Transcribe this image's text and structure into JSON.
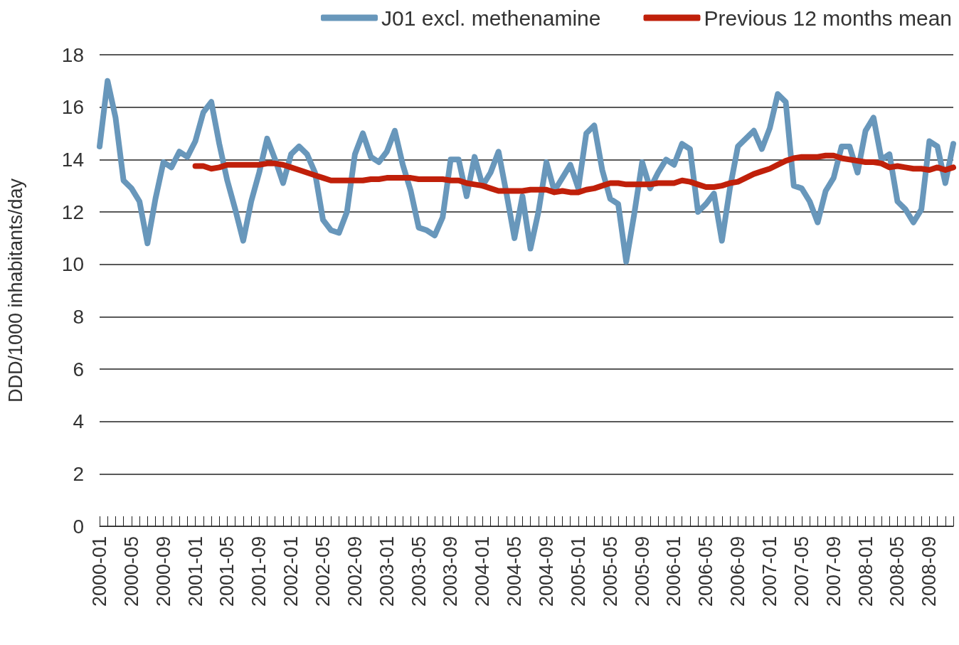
{
  "chart_data": {
    "type": "line",
    "ylabel": "DDD/1000 inhabitants/day",
    "categories": [
      "2000-01",
      null,
      null,
      null,
      "2000-05",
      null,
      null,
      null,
      "2000-09",
      null,
      null,
      null,
      "2001-01",
      null,
      null,
      null,
      "2001-05",
      null,
      null,
      null,
      "2001-09",
      null,
      null,
      null,
      "2002-01",
      null,
      null,
      null,
      "2002-05",
      null,
      null,
      null,
      "2002-09",
      null,
      null,
      null,
      "2003-01",
      null,
      null,
      null,
      "2003-05",
      null,
      null,
      null,
      "2003-09",
      null,
      null,
      null,
      "2004-01",
      null,
      null,
      null,
      "2004-05",
      null,
      null,
      null,
      "2004-09",
      null,
      null,
      null,
      "2005-01",
      null,
      null,
      null,
      "2005-05",
      null,
      null,
      null,
      "2005-09",
      null,
      null,
      null,
      "2006-01",
      null,
      null,
      null,
      "2006-05",
      null,
      null,
      null,
      "2006-09",
      null,
      null,
      null,
      "2007-01",
      null,
      null,
      null,
      "2007-05",
      null,
      null,
      null,
      "2007-09",
      null,
      null,
      null,
      "2008-01",
      null,
      null,
      null,
      "2008-05",
      null,
      null,
      null,
      "2008-09",
      null,
      null,
      null
    ],
    "series": [
      {
        "name": "J01 excl. methenamine",
        "color": "#6897bb",
        "values": [
          14.5,
          17.0,
          15.6,
          13.2,
          12.9,
          12.4,
          10.8,
          12.5,
          13.9,
          13.7,
          14.3,
          14.1,
          14.7,
          15.8,
          16.2,
          14.6,
          13.2,
          12.1,
          10.9,
          12.4,
          13.5,
          14.8,
          14.0,
          13.1,
          14.2,
          14.5,
          14.2,
          13.5,
          11.7,
          11.3,
          11.2,
          12.0,
          14.2,
          15.0,
          14.1,
          13.9,
          14.3,
          15.1,
          13.8,
          12.8,
          11.4,
          11.3,
          11.1,
          11.8,
          14.0,
          14.0,
          12.6,
          14.1,
          13.0,
          13.5,
          14.3,
          12.7,
          11.0,
          12.6,
          10.6,
          12.0,
          13.9,
          12.8,
          13.3,
          13.8,
          12.9,
          15.0,
          15.3,
          13.6,
          12.5,
          12.3,
          10.1,
          11.9,
          13.9,
          12.9,
          13.5,
          14.0,
          13.8,
          14.6,
          14.4,
          12.0,
          12.3,
          12.7,
          10.9,
          12.9,
          14.5,
          14.8,
          15.1,
          14.4,
          15.2,
          16.5,
          16.2,
          13.0,
          12.9,
          12.4,
          11.6,
          12.8,
          13.3,
          14.5,
          14.5,
          13.5,
          15.1,
          15.6,
          14.0,
          14.2,
          12.4,
          12.1,
          11.6,
          12.1,
          14.7,
          14.5,
          13.1,
          14.6
        ]
      },
      {
        "name": "Previous 12 months mean",
        "color": "#c0200a",
        "values": [
          null,
          null,
          null,
          null,
          null,
          null,
          null,
          null,
          null,
          null,
          null,
          null,
          13.75,
          13.75,
          13.65,
          13.7,
          13.8,
          13.8,
          13.8,
          13.8,
          13.8,
          13.85,
          13.85,
          13.8,
          13.7,
          13.6,
          13.5,
          13.4,
          13.3,
          13.2,
          13.2,
          13.2,
          13.2,
          13.2,
          13.25,
          13.25,
          13.3,
          13.3,
          13.3,
          13.3,
          13.25,
          13.25,
          13.25,
          13.25,
          13.2,
          13.2,
          13.1,
          13.05,
          13.0,
          12.9,
          12.8,
          12.8,
          12.8,
          12.8,
          12.85,
          12.85,
          12.85,
          12.75,
          12.8,
          12.75,
          12.75,
          12.85,
          12.9,
          13.0,
          13.1,
          13.1,
          13.05,
          13.05,
          13.05,
          13.05,
          13.1,
          13.1,
          13.1,
          13.2,
          13.15,
          13.05,
          12.95,
          12.95,
          13.0,
          13.1,
          13.15,
          13.3,
          13.45,
          13.55,
          13.65,
          13.8,
          13.95,
          14.05,
          14.1,
          14.1,
          14.1,
          14.15,
          14.15,
          14.05,
          14.0,
          13.95,
          13.9,
          13.9,
          13.85,
          13.7,
          13.75,
          13.7,
          13.65,
          13.65,
          13.6,
          13.7,
          13.6,
          13.7
        ]
      }
    ],
    "ylim": [
      0,
      18
    ],
    "yticks": [
      0,
      2,
      4,
      6,
      8,
      10,
      12,
      14,
      16,
      18
    ],
    "grid": "y",
    "legend": "top right",
    "marker": "none",
    "line_style": "solid"
  }
}
